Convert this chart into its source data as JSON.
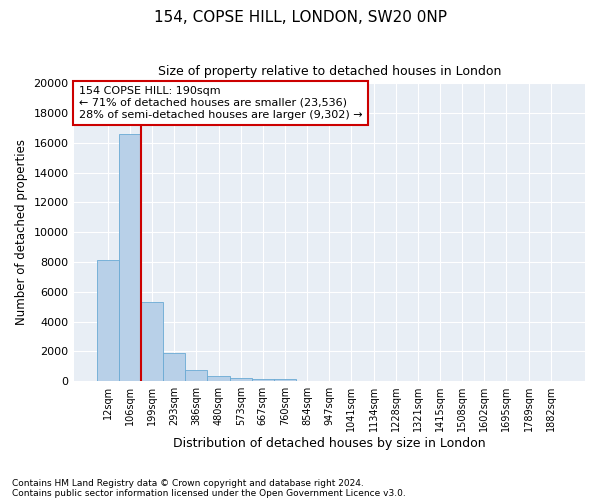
{
  "title1": "154, COPSE HILL, LONDON, SW20 0NP",
  "title2": "Size of property relative to detached houses in London",
  "xlabel": "Distribution of detached houses by size in London",
  "ylabel": "Number of detached properties",
  "bar_labels": [
    "12sqm",
    "106sqm",
    "199sqm",
    "293sqm",
    "386sqm",
    "480sqm",
    "573sqm",
    "667sqm",
    "760sqm",
    "854sqm",
    "947sqm",
    "1041sqm",
    "1134sqm",
    "1228sqm",
    "1321sqm",
    "1415sqm",
    "1508sqm",
    "1602sqm",
    "1695sqm",
    "1789sqm",
    "1882sqm"
  ],
  "bar_values": [
    8100,
    16600,
    5300,
    1870,
    750,
    330,
    200,
    155,
    110,
    0,
    0,
    0,
    0,
    0,
    0,
    0,
    0,
    0,
    0,
    0,
    0
  ],
  "bar_color": "#b8d0e8",
  "bar_edge_color": "#6aaad4",
  "property_line_color": "#cc0000",
  "annotation_title": "154 COPSE HILL: 190sqm",
  "annotation_line2": "← 71% of detached houses are smaller (23,536)",
  "annotation_line3": "28% of semi-detached houses are larger (9,302) →",
  "annotation_box_color": "#cc0000",
  "ylim_max": 20000,
  "yticks": [
    0,
    2000,
    4000,
    6000,
    8000,
    10000,
    12000,
    14000,
    16000,
    18000,
    20000
  ],
  "footnote1": "Contains HM Land Registry data © Crown copyright and database right 2024.",
  "footnote2": "Contains public sector information licensed under the Open Government Licence v3.0.",
  "plot_bg_color": "#e8eef5"
}
